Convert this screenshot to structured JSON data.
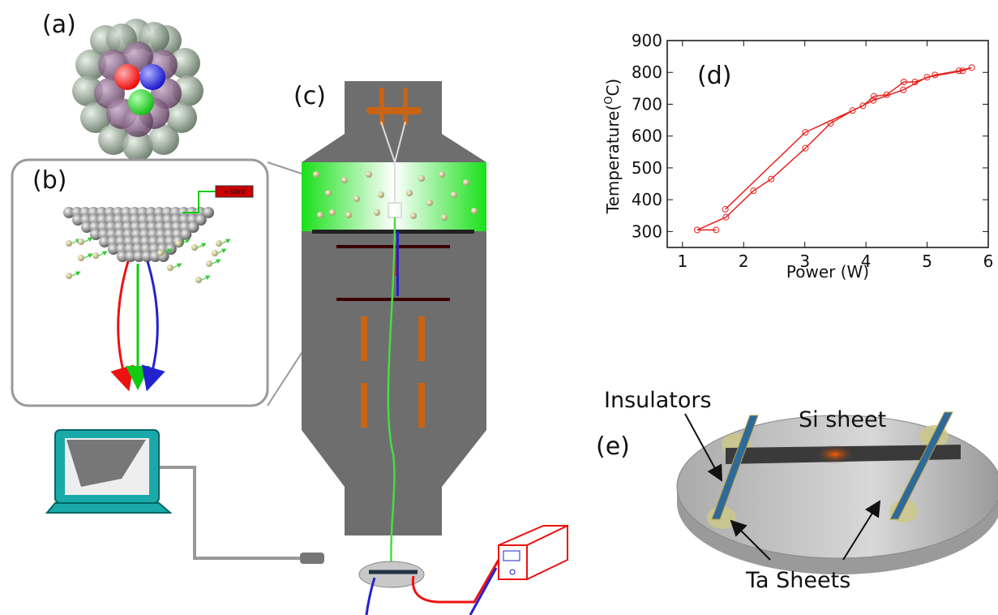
{
  "panels": {
    "a": "(a)",
    "b": "(b)",
    "c": "(c)",
    "d": "(d)",
    "e": "(e)"
  },
  "voltage": "+30kV",
  "sample_labels": {
    "insulators": "Insulators",
    "si_sheet": "Si sheet",
    "ta_sheets": "Ta Sheets"
  },
  "chart_data": {
    "type": "line",
    "xlabel": "Power (W)",
    "ylabel": {
      "text": "Temperature(",
      "sup": "O",
      "end": "C)"
    },
    "x": [
      1.55,
      1.24,
      1.71,
      2.16,
      2.45,
      3.01,
      3.42,
      3.78,
      4.12,
      4.61,
      5.0,
      5.58,
      5.73,
      5.52,
      5.13,
      4.8,
      4.62,
      4.34,
      4.13,
      3.95,
      3.01,
      1.7
    ],
    "series": [
      {
        "color": "#e8221e",
        "values": [
          305,
          305,
          345,
          428,
          465,
          562,
          640,
          680,
          712,
          745,
          785,
          805,
          815,
          805,
          792,
          770,
          770,
          730,
          725,
          695,
          612,
          370
        ]
      }
    ],
    "xlim": [
      0.75,
      6
    ],
    "ylim": [
      250,
      900
    ],
    "xticks": [
      1,
      2,
      3,
      4,
      5,
      6
    ],
    "yticks": [
      300,
      400,
      500,
      600,
      700,
      800,
      900
    ],
    "markers": "open-circle"
  }
}
